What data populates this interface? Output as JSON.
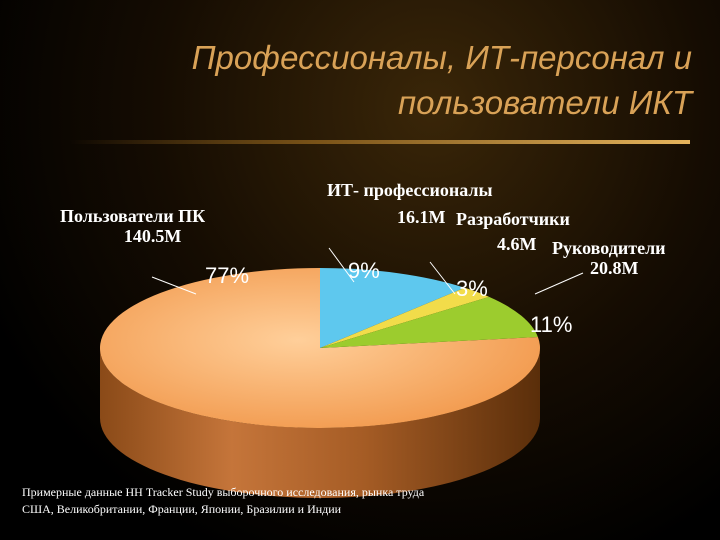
{
  "title": {
    "line1": "Профессионалы, ИТ-персонал и",
    "line2": "пользователи ИКТ"
  },
  "chart_data": {
    "type": "pie",
    "slices": [
      {
        "name": "Пользователи ПК",
        "value": 140.5,
        "value_label": "140.5M",
        "percent_label": "77%",
        "color": "#f5a055"
      },
      {
        "name": "Руководители",
        "value": 20.8,
        "value_label": "20.8M",
        "percent_label": "11%",
        "color": "#5ec8ee"
      },
      {
        "name": "Разработчики",
        "value": 4.6,
        "value_label": "4.6M",
        "percent_label": "3%",
        "color": "#f2dc4a"
      },
      {
        "name": "ИТ- профессионалы",
        "value": 16.1,
        "value_label": "16.1M",
        "percent_label": "9%",
        "color": "#9ccc2e"
      }
    ],
    "legend": "none"
  },
  "footnote": {
    "line1": "Примерные данные НН Tracker Study выборочного исследования, рынка труда",
    "line2": "США, Великобритании, Франции, Японии, Бразилии  и Индии"
  }
}
